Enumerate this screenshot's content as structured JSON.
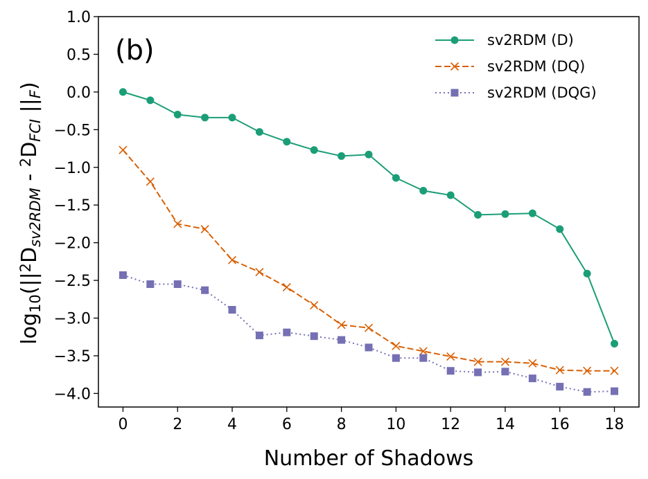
{
  "chart_data": {
    "type": "line",
    "panel_label": "(b)",
    "xlabel": "Number of Shadows",
    "ylabel": {
      "prefix": "log",
      "prefix_sub": "10",
      "open": "(||",
      "sup1": "2",
      "d1": "D",
      "sub1": "sv2RDM",
      "minus": " - ",
      "sup2": "2",
      "d2": "D",
      "sub2": "FCI",
      "close": " ||",
      "sub3": "F",
      "end": ")"
    },
    "xlim": [
      -0.9,
      18.9
    ],
    "ylim": [
      -4.18,
      1.0
    ],
    "xticks": [
      0,
      2,
      4,
      6,
      8,
      10,
      12,
      14,
      16,
      18
    ],
    "yticks": [
      1.0,
      0.5,
      0.0,
      -0.5,
      -1.0,
      -1.5,
      -2.0,
      -2.5,
      -3.0,
      -3.5,
      -4.0
    ],
    "ytick_labels": [
      "1.0",
      "0.5",
      "0.0",
      "−0.5",
      "−1.0",
      "−1.5",
      "−2.0",
      "−2.5",
      "−3.0",
      "−3.5",
      "−4.0"
    ],
    "legend_position": "top-right",
    "grid": false,
    "x": [
      0,
      1,
      2,
      3,
      4,
      5,
      6,
      7,
      8,
      9,
      10,
      11,
      12,
      13,
      14,
      15,
      16,
      17,
      18
    ],
    "series": [
      {
        "name": "sv2RDM (D)",
        "color": "#1b9e77",
        "marker": "circle",
        "linestyle": "solid",
        "values": [
          0.0,
          -0.11,
          -0.3,
          -0.34,
          -0.34,
          -0.53,
          -0.66,
          -0.77,
          -0.85,
          -0.83,
          -1.14,
          -1.31,
          -1.37,
          -1.63,
          -1.62,
          -1.61,
          -1.82,
          -2.41,
          -3.34
        ]
      },
      {
        "name": "sv2RDM (DQ)",
        "color": "#d95f02",
        "marker": "x",
        "linestyle": "dashed",
        "values": [
          -0.77,
          -1.19,
          -1.75,
          -1.82,
          -2.23,
          -2.39,
          -2.59,
          -2.83,
          -3.09,
          -3.13,
          -3.37,
          -3.44,
          -3.51,
          -3.58,
          -3.58,
          -3.6,
          -3.69,
          -3.7,
          -3.7
        ]
      },
      {
        "name": "sv2RDM (DQG)",
        "color": "#7570b3",
        "marker": "square",
        "linestyle": "dotted",
        "values": [
          -2.43,
          -2.55,
          -2.55,
          -2.63,
          -2.89,
          -3.23,
          -3.19,
          -3.24,
          -3.29,
          -3.39,
          -3.53,
          -3.53,
          -3.7,
          -3.72,
          -3.71,
          -3.8,
          -3.91,
          -3.98,
          -3.97
        ]
      }
    ]
  }
}
